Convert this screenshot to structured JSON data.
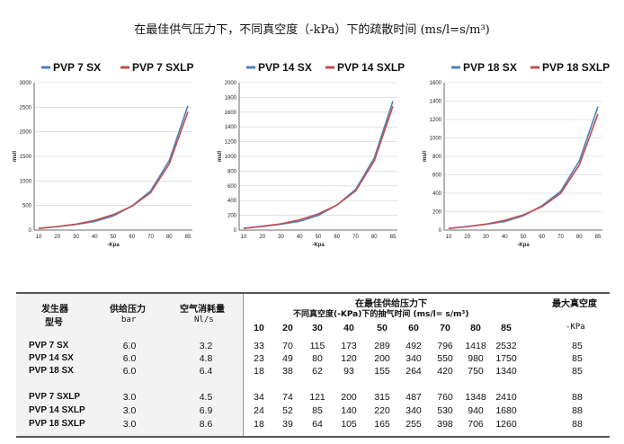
{
  "title": "在最佳供气压力下，不同真空度（-kPa）下的疏散时间 (ms/l=s/m³)",
  "colors": {
    "sx": "#4f81bd",
    "sxlp": "#c0504d",
    "grid": "#d0d0d0",
    "axis": "#444444"
  },
  "chart_data": [
    {
      "type": "line",
      "x": [
        10,
        20,
        30,
        40,
        50,
        60,
        70,
        80,
        85
      ],
      "xlabel": "-Kpa",
      "ylabel": "ms/l",
      "ylim": [
        0,
        3000
      ],
      "yticks": [
        "0",
        "500",
        "1000",
        "1500",
        "2000",
        "2500",
        "3000"
      ],
      "grid": true,
      "legend": "top",
      "series": [
        {
          "name": "PVP 7 SX",
          "values": [
            33,
            70,
            115,
            173,
            289,
            492,
            796,
            1418,
            2532
          ]
        },
        {
          "name": "PVP 7 SXLP",
          "values": [
            34,
            74,
            121,
            200,
            315,
            487,
            760,
            1348,
            2410
          ]
        }
      ]
    },
    {
      "type": "line",
      "x": [
        10,
        20,
        30,
        40,
        50,
        60,
        70,
        80,
        85
      ],
      "xlabel": "-Kpa",
      "ylabel": "ms/l",
      "ylim": [
        0,
        2000
      ],
      "yticks": [
        "0",
        "200",
        "400",
        "600",
        "800",
        "1000",
        "1200",
        "1400",
        "1600",
        "1800",
        "2000"
      ],
      "grid": true,
      "legend": "top",
      "series": [
        {
          "name": "PVP 14 SX",
          "values": [
            23,
            49,
            80,
            120,
            200,
            340,
            550,
            980,
            1750
          ]
        },
        {
          "name": "PVP 14 SXLP",
          "values": [
            24,
            52,
            85,
            140,
            220,
            340,
            530,
            940,
            1680
          ]
        }
      ]
    },
    {
      "type": "line",
      "x": [
        10,
        20,
        30,
        40,
        50,
        60,
        70,
        80,
        85
      ],
      "xlabel": "-Kpa",
      "ylabel": "ms/l",
      "ylim": [
        0,
        1600
      ],
      "yticks": [
        "0",
        "200",
        "400",
        "600",
        "800",
        "1000",
        "1200",
        "1400",
        "1600"
      ],
      "grid": true,
      "legend": "top",
      "series": [
        {
          "name": "PVP 18 SX",
          "values": [
            18,
            38,
            62,
            93,
            155,
            264,
            420,
            750,
            1340
          ]
        },
        {
          "name": "PVP 18 SXLP",
          "values": [
            18,
            39,
            64,
            105,
            165,
            255,
            398,
            706,
            1260
          ]
        }
      ]
    }
  ],
  "table": {
    "h_model_1": "发生器",
    "h_model_2": "型号",
    "h_press_1": "供给压力",
    "h_press_2": "bar",
    "h_air_1": "空气消耗量",
    "h_air_2": "Nl/s",
    "h_time_1": "在最佳供给压力下",
    "h_time_2": "不同真空度(-KPa)下的抽气时间 (ms/l= s/m³)",
    "h_max_1": "最大真空度",
    "h_max_2": "-KPa",
    "vac_levels": [
      "10",
      "20",
      "30",
      "40",
      "50",
      "60",
      "70",
      "80",
      "85"
    ],
    "rows": [
      {
        "model": "PVP 7 SX",
        "pressure": "6.0",
        "air": "3.2",
        "times": [
          "33",
          "70",
          "115",
          "173",
          "289",
          "492",
          "796",
          "1418",
          "2532"
        ],
        "max": "85"
      },
      {
        "model": "PVP 14 SX",
        "pressure": "6.0",
        "air": "4.8",
        "times": [
          "23",
          "49",
          "80",
          "120",
          "200",
          "340",
          "550",
          "980",
          "1750"
        ],
        "max": "85"
      },
      {
        "model": "PVP 18 SX",
        "pressure": "6.0",
        "air": "6.4",
        "times": [
          "18",
          "38",
          "62",
          "93",
          "155",
          "264",
          "420",
          "750",
          "1340"
        ],
        "max": "85"
      },
      {
        "model": "PVP 7 SXLP",
        "pressure": "3.0",
        "air": "4.5",
        "times": [
          "34",
          "74",
          "121",
          "200",
          "315",
          "487",
          "760",
          "1348",
          "2410"
        ],
        "max": "88"
      },
      {
        "model": "PVP 14 SXLP",
        "pressure": "3.0",
        "air": "6.9",
        "times": [
          "24",
          "52",
          "85",
          "140",
          "220",
          "340",
          "530",
          "940",
          "1680"
        ],
        "max": "88"
      },
      {
        "model": "PVP 18 SXLP",
        "pressure": "3.0",
        "air": "8.6",
        "times": [
          "18",
          "39",
          "64",
          "105",
          "165",
          "255",
          "398",
          "706",
          "1260"
        ],
        "max": "88"
      }
    ]
  }
}
